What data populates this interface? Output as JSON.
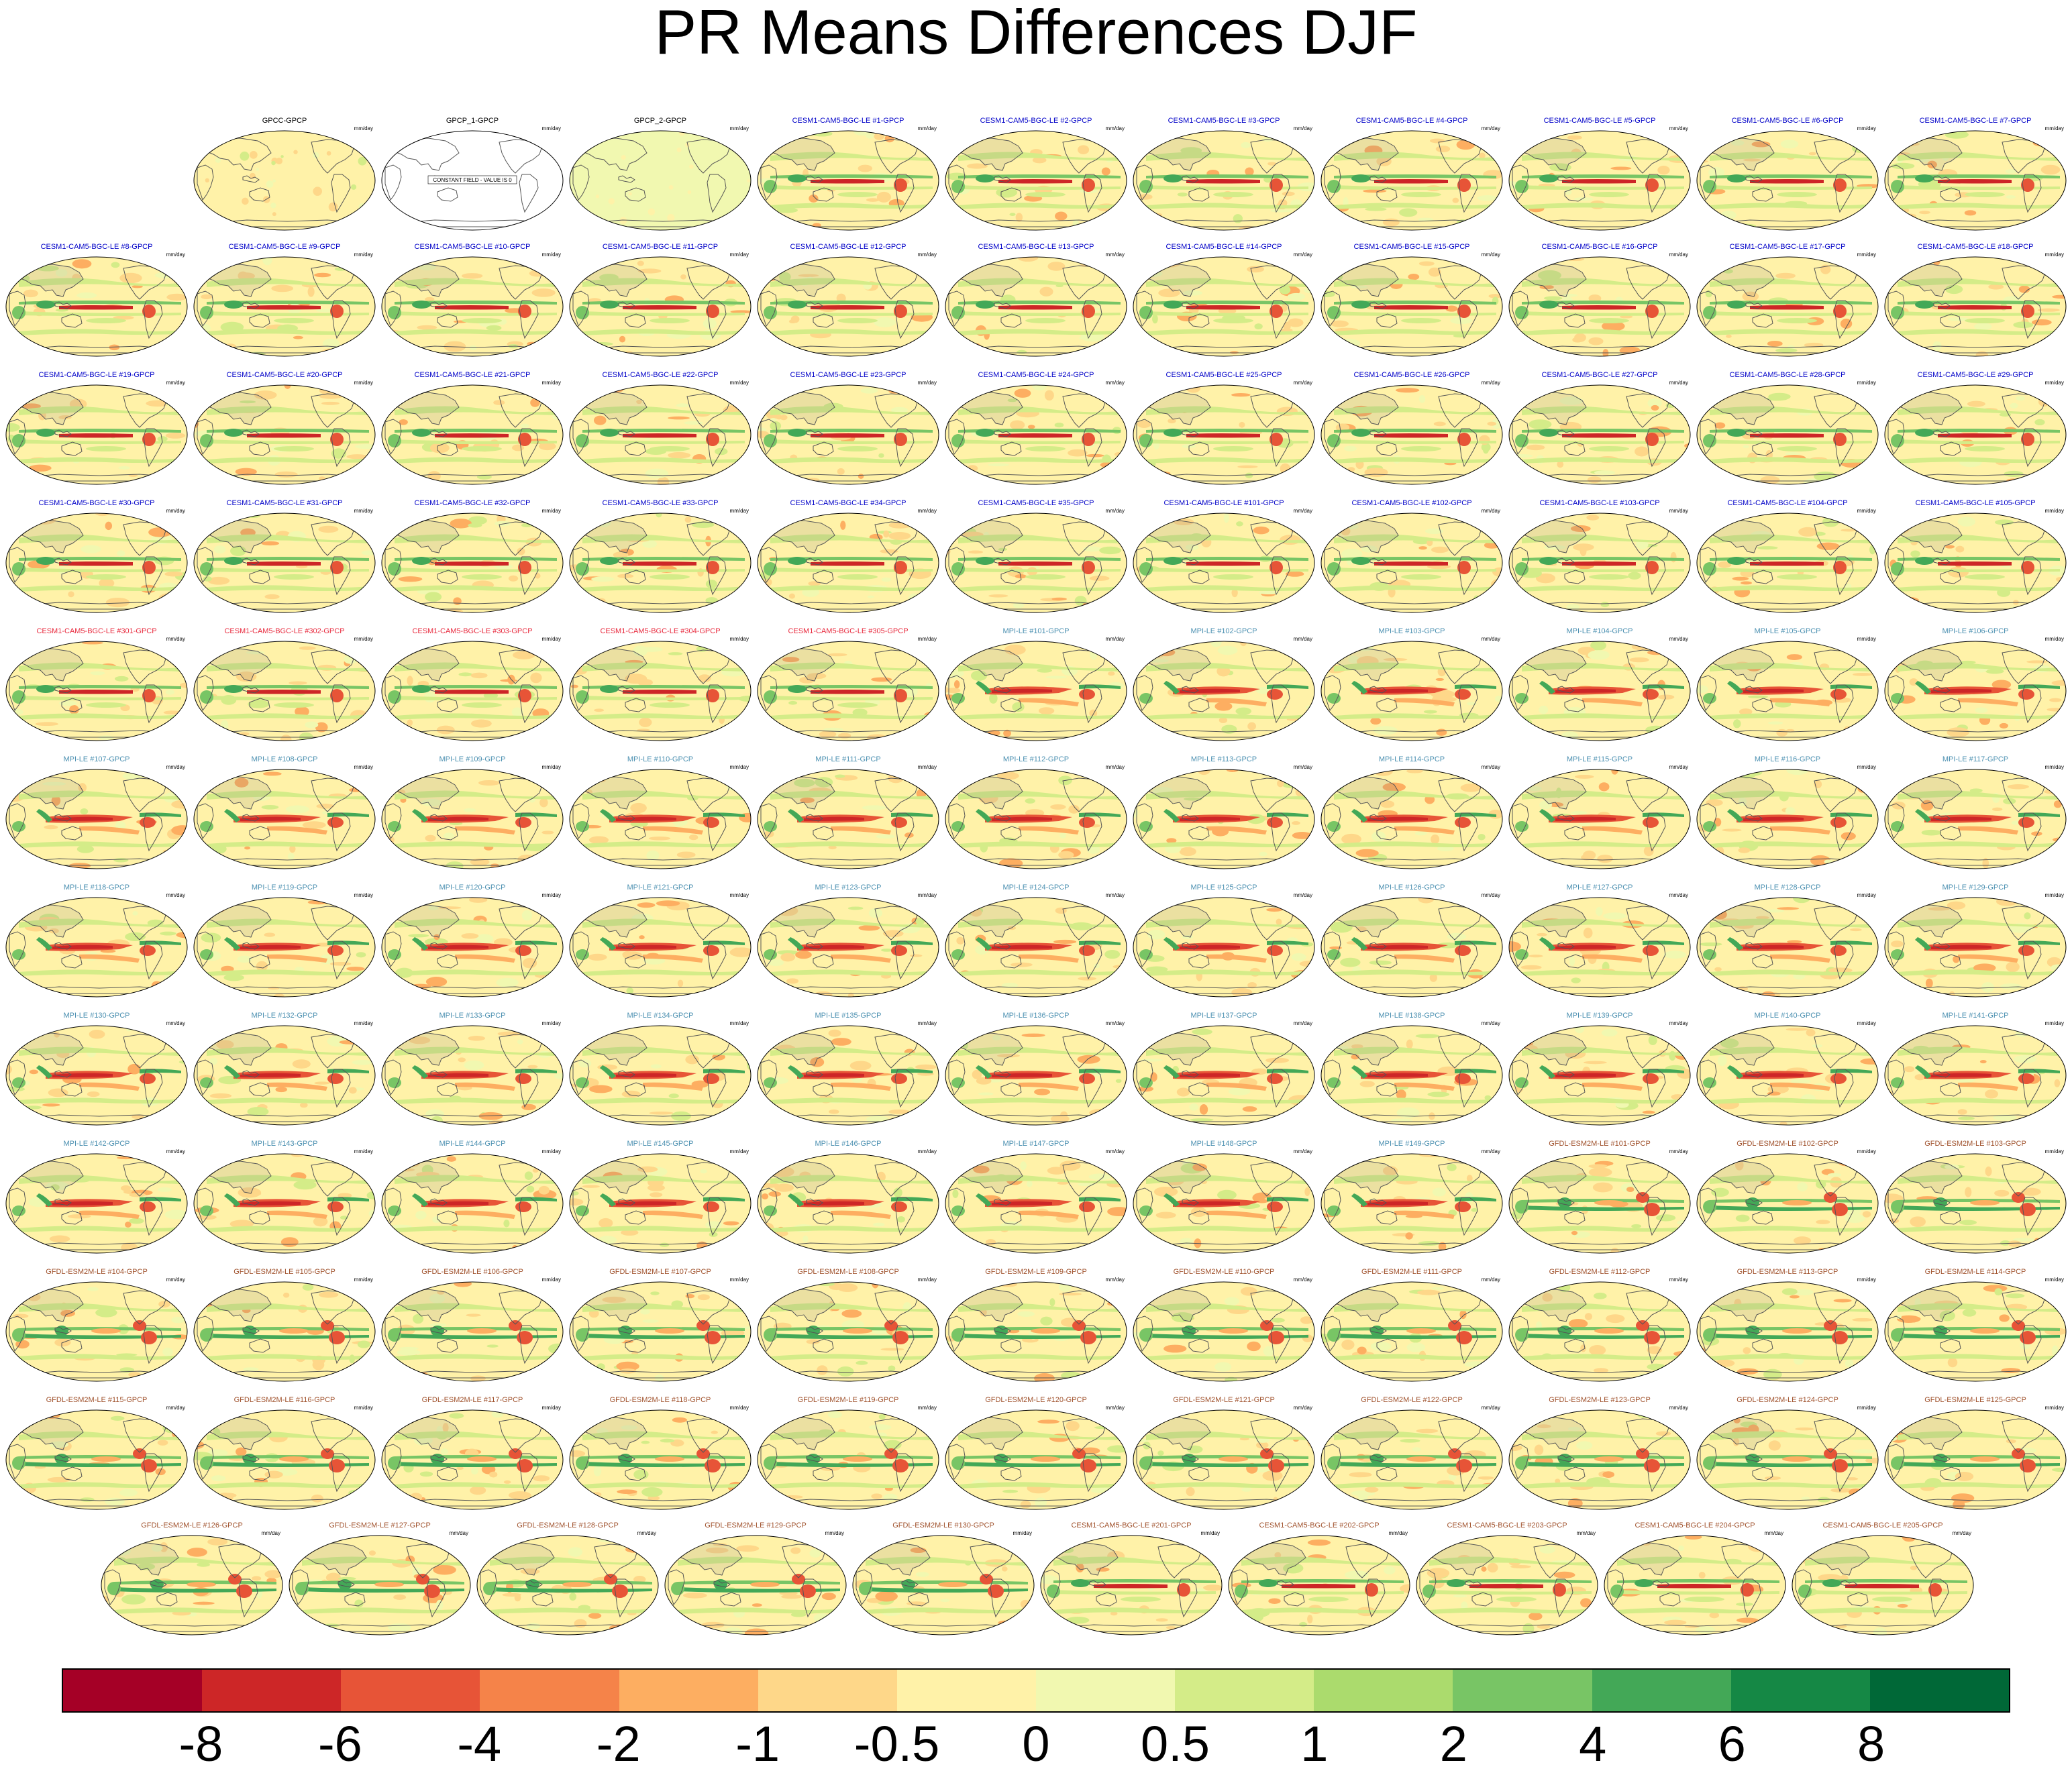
{
  "chart_data": {
    "type": "heatmap",
    "title": "PR Means Differences DJF",
    "units": "mm/day",
    "colorbar": {
      "labels": [
        "-8",
        "-6",
        "-4",
        "-2",
        "-1",
        "-0.5",
        "0",
        "0.5",
        "1",
        "2",
        "4",
        "6",
        "8"
      ],
      "colors": [
        "#a50026",
        "#cd2627",
        "#e75437",
        "#f58349",
        "#fdae61",
        "#fed789",
        "#fff2a8",
        "#f1f8b0",
        "#d4ec88",
        "#abdb6d",
        "#78c565",
        "#43a857",
        "#158845",
        "#006837"
      ]
    },
    "panels": [
      {
        "title": "GPCC-GPCP",
        "color": "#000000",
        "kind": "obs"
      },
      {
        "title": "GPCP_1-GPCP",
        "color": "#000000",
        "kind": "constant",
        "note": "CONSTANT FIELD - VALUE IS 0"
      },
      {
        "title": "GPCP_2-GPCP",
        "color": "#000000",
        "kind": "near-zero"
      },
      {
        "title": "CESM1-CAM5-BGC-LE #1-GPCP",
        "color": "#0000c8",
        "kind": "cesm"
      },
      {
        "title": "CESM1-CAM5-BGC-LE #2-GPCP",
        "color": "#0000c8",
        "kind": "cesm"
      },
      {
        "title": "CESM1-CAM5-BGC-LE #3-GPCP",
        "color": "#0000c8",
        "kind": "cesm"
      },
      {
        "title": "CESM1-CAM5-BGC-LE #4-GPCP",
        "color": "#0000c8",
        "kind": "cesm"
      },
      {
        "title": "CESM1-CAM5-BGC-LE #5-GPCP",
        "color": "#0000c8",
        "kind": "cesm"
      },
      {
        "title": "CESM1-CAM5-BGC-LE #6-GPCP",
        "color": "#0000c8",
        "kind": "cesm"
      },
      {
        "title": "CESM1-CAM5-BGC-LE #7-GPCP",
        "color": "#0000c8",
        "kind": "cesm"
      },
      {
        "title": "CESM1-CAM5-BGC-LE #8-GPCP",
        "color": "#0000c8",
        "kind": "cesm"
      },
      {
        "title": "CESM1-CAM5-BGC-LE #9-GPCP",
        "color": "#0000c8",
        "kind": "cesm"
      },
      {
        "title": "CESM1-CAM5-BGC-LE #10-GPCP",
        "color": "#0000c8",
        "kind": "cesm"
      },
      {
        "title": "CESM1-CAM5-BGC-LE #11-GPCP",
        "color": "#0000c8",
        "kind": "cesm"
      },
      {
        "title": "CESM1-CAM5-BGC-LE #12-GPCP",
        "color": "#0000c8",
        "kind": "cesm"
      },
      {
        "title": "CESM1-CAM5-BGC-LE #13-GPCP",
        "color": "#0000c8",
        "kind": "cesm"
      },
      {
        "title": "CESM1-CAM5-BGC-LE #14-GPCP",
        "color": "#0000c8",
        "kind": "cesm"
      },
      {
        "title": "CESM1-CAM5-BGC-LE #15-GPCP",
        "color": "#0000c8",
        "kind": "cesm"
      },
      {
        "title": "CESM1-CAM5-BGC-LE #16-GPCP",
        "color": "#0000c8",
        "kind": "cesm"
      },
      {
        "title": "CESM1-CAM5-BGC-LE #17-GPCP",
        "color": "#0000c8",
        "kind": "cesm"
      },
      {
        "title": "CESM1-CAM5-BGC-LE #18-GPCP",
        "color": "#0000c8",
        "kind": "cesm"
      },
      {
        "title": "CESM1-CAM5-BGC-LE #19-GPCP",
        "color": "#0000c8",
        "kind": "cesm"
      },
      {
        "title": "CESM1-CAM5-BGC-LE #20-GPCP",
        "color": "#0000c8",
        "kind": "cesm"
      },
      {
        "title": "CESM1-CAM5-BGC-LE #21-GPCP",
        "color": "#0000c8",
        "kind": "cesm"
      },
      {
        "title": "CESM1-CAM5-BGC-LE #22-GPCP",
        "color": "#0000c8",
        "kind": "cesm"
      },
      {
        "title": "CESM1-CAM5-BGC-LE #23-GPCP",
        "color": "#0000c8",
        "kind": "cesm"
      },
      {
        "title": "CESM1-CAM5-BGC-LE #24-GPCP",
        "color": "#0000c8",
        "kind": "cesm"
      },
      {
        "title": "CESM1-CAM5-BGC-LE #25-GPCP",
        "color": "#0000c8",
        "kind": "cesm"
      },
      {
        "title": "CESM1-CAM5-BGC-LE #26-GPCP",
        "color": "#0000c8",
        "kind": "cesm"
      },
      {
        "title": "CESM1-CAM5-BGC-LE #27-GPCP",
        "color": "#0000c8",
        "kind": "cesm"
      },
      {
        "title": "CESM1-CAM5-BGC-LE #28-GPCP",
        "color": "#0000c8",
        "kind": "cesm"
      },
      {
        "title": "CESM1-CAM5-BGC-LE #29-GPCP",
        "color": "#0000c8",
        "kind": "cesm"
      },
      {
        "title": "CESM1-CAM5-BGC-LE #30-GPCP",
        "color": "#0000c8",
        "kind": "cesm"
      },
      {
        "title": "CESM1-CAM5-BGC-LE #31-GPCP",
        "color": "#0000c8",
        "kind": "cesm"
      },
      {
        "title": "CESM1-CAM5-BGC-LE #32-GPCP",
        "color": "#0000c8",
        "kind": "cesm"
      },
      {
        "title": "CESM1-CAM5-BGC-LE #33-GPCP",
        "color": "#0000c8",
        "kind": "cesm"
      },
      {
        "title": "CESM1-CAM5-BGC-LE #34-GPCP",
        "color": "#0000c8",
        "kind": "cesm"
      },
      {
        "title": "CESM1-CAM5-BGC-LE #35-GPCP",
        "color": "#0000c8",
        "kind": "cesm"
      },
      {
        "title": "CESM1-CAM5-BGC-LE #101-GPCP",
        "color": "#0000c8",
        "kind": "cesm"
      },
      {
        "title": "CESM1-CAM5-BGC-LE #102-GPCP",
        "color": "#0000c8",
        "kind": "cesm"
      },
      {
        "title": "CESM1-CAM5-BGC-LE #103-GPCP",
        "color": "#0000c8",
        "kind": "cesm"
      },
      {
        "title": "CESM1-CAM5-BGC-LE #104-GPCP",
        "color": "#0000c8",
        "kind": "cesm"
      },
      {
        "title": "CESM1-CAM5-BGC-LE #105-GPCP",
        "color": "#0000c8",
        "kind": "cesm"
      },
      {
        "title": "CESM1-CAM5-BGC-LE #301-GPCP",
        "color": "#e8283c",
        "kind": "cesm"
      },
      {
        "title": "CESM1-CAM5-BGC-LE #302-GPCP",
        "color": "#e8283c",
        "kind": "cesm"
      },
      {
        "title": "CESM1-CAM5-BGC-LE #303-GPCP",
        "color": "#e8283c",
        "kind": "cesm"
      },
      {
        "title": "CESM1-CAM5-BGC-LE #304-GPCP",
        "color": "#e8283c",
        "kind": "cesm"
      },
      {
        "title": "CESM1-CAM5-BGC-LE #305-GPCP",
        "color": "#e8283c",
        "kind": "cesm"
      },
      {
        "title": "MPI-LE #101-GPCP",
        "color": "#4a8fb0",
        "kind": "mpi"
      },
      {
        "title": "MPI-LE #102-GPCP",
        "color": "#4a8fb0",
        "kind": "mpi"
      },
      {
        "title": "MPI-LE #103-GPCP",
        "color": "#4a8fb0",
        "kind": "mpi"
      },
      {
        "title": "MPI-LE #104-GPCP",
        "color": "#4a8fb0",
        "kind": "mpi"
      },
      {
        "title": "MPI-LE #105-GPCP",
        "color": "#4a8fb0",
        "kind": "mpi"
      },
      {
        "title": "MPI-LE #106-GPCP",
        "color": "#4a8fb0",
        "kind": "mpi"
      },
      {
        "title": "MPI-LE #107-GPCP",
        "color": "#4a8fb0",
        "kind": "mpi"
      },
      {
        "title": "MPI-LE #108-GPCP",
        "color": "#4a8fb0",
        "kind": "mpi"
      },
      {
        "title": "MPI-LE #109-GPCP",
        "color": "#4a8fb0",
        "kind": "mpi"
      },
      {
        "title": "MPI-LE #110-GPCP",
        "color": "#4a8fb0",
        "kind": "mpi"
      },
      {
        "title": "MPI-LE #111-GPCP",
        "color": "#4a8fb0",
        "kind": "mpi"
      },
      {
        "title": "MPI-LE #112-GPCP",
        "color": "#4a8fb0",
        "kind": "mpi"
      },
      {
        "title": "MPI-LE #113-GPCP",
        "color": "#4a8fb0",
        "kind": "mpi"
      },
      {
        "title": "MPI-LE #114-GPCP",
        "color": "#4a8fb0",
        "kind": "mpi"
      },
      {
        "title": "MPI-LE #115-GPCP",
        "color": "#4a8fb0",
        "kind": "mpi"
      },
      {
        "title": "MPI-LE #116-GPCP",
        "color": "#4a8fb0",
        "kind": "mpi"
      },
      {
        "title": "MPI-LE #117-GPCP",
        "color": "#4a8fb0",
        "kind": "mpi"
      },
      {
        "title": "MPI-LE #118-GPCP",
        "color": "#4a8fb0",
        "kind": "mpi"
      },
      {
        "title": "MPI-LE #119-GPCP",
        "color": "#4a8fb0",
        "kind": "mpi"
      },
      {
        "title": "MPI-LE #120-GPCP",
        "color": "#4a8fb0",
        "kind": "mpi"
      },
      {
        "title": "MPI-LE #121-GPCP",
        "color": "#4a8fb0",
        "kind": "mpi"
      },
      {
        "title": "MPI-LE #123-GPCP",
        "color": "#4a8fb0",
        "kind": "mpi"
      },
      {
        "title": "MPI-LE #124-GPCP",
        "color": "#4a8fb0",
        "kind": "mpi"
      },
      {
        "title": "MPI-LE #125-GPCP",
        "color": "#4a8fb0",
        "kind": "mpi"
      },
      {
        "title": "MPI-LE #126-GPCP",
        "color": "#4a8fb0",
        "kind": "mpi"
      },
      {
        "title": "MPI-LE #127-GPCP",
        "color": "#4a8fb0",
        "kind": "mpi"
      },
      {
        "title": "MPI-LE #128-GPCP",
        "color": "#4a8fb0",
        "kind": "mpi"
      },
      {
        "title": "MPI-LE #129-GPCP",
        "color": "#4a8fb0",
        "kind": "mpi"
      },
      {
        "title": "MPI-LE #130-GPCP",
        "color": "#4a8fb0",
        "kind": "mpi"
      },
      {
        "title": "MPI-LE #132-GPCP",
        "color": "#4a8fb0",
        "kind": "mpi"
      },
      {
        "title": "MPI-LE #133-GPCP",
        "color": "#4a8fb0",
        "kind": "mpi"
      },
      {
        "title": "MPI-LE #134-GPCP",
        "color": "#4a8fb0",
        "kind": "mpi"
      },
      {
        "title": "MPI-LE #135-GPCP",
        "color": "#4a8fb0",
        "kind": "mpi"
      },
      {
        "title": "MPI-LE #136-GPCP",
        "color": "#4a8fb0",
        "kind": "mpi"
      },
      {
        "title": "MPI-LE #137-GPCP",
        "color": "#4a8fb0",
        "kind": "mpi"
      },
      {
        "title": "MPI-LE #138-GPCP",
        "color": "#4a8fb0",
        "kind": "mpi"
      },
      {
        "title": "MPI-LE #139-GPCP",
        "color": "#4a8fb0",
        "kind": "mpi"
      },
      {
        "title": "MPI-LE #140-GPCP",
        "color": "#4a8fb0",
        "kind": "mpi"
      },
      {
        "title": "MPI-LE #141-GPCP",
        "color": "#4a8fb0",
        "kind": "mpi"
      },
      {
        "title": "MPI-LE #142-GPCP",
        "color": "#4a8fb0",
        "kind": "mpi"
      },
      {
        "title": "MPI-LE #143-GPCP",
        "color": "#4a8fb0",
        "kind": "mpi"
      },
      {
        "title": "MPI-LE #144-GPCP",
        "color": "#4a8fb0",
        "kind": "mpi"
      },
      {
        "title": "MPI-LE #145-GPCP",
        "color": "#4a8fb0",
        "kind": "mpi"
      },
      {
        "title": "MPI-LE #146-GPCP",
        "color": "#4a8fb0",
        "kind": "mpi"
      },
      {
        "title": "MPI-LE #147-GPCP",
        "color": "#4a8fb0",
        "kind": "mpi"
      },
      {
        "title": "MPI-LE #148-GPCP",
        "color": "#4a8fb0",
        "kind": "mpi"
      },
      {
        "title": "MPI-LE #149-GPCP",
        "color": "#4a8fb0",
        "kind": "mpi"
      },
      {
        "title": "GFDL-ESM2M-LE #101-GPCP",
        "color": "#a0522d",
        "kind": "gfdl"
      },
      {
        "title": "GFDL-ESM2M-LE #102-GPCP",
        "color": "#a0522d",
        "kind": "gfdl"
      },
      {
        "title": "GFDL-ESM2M-LE #103-GPCP",
        "color": "#a0522d",
        "kind": "gfdl"
      },
      {
        "title": "GFDL-ESM2M-LE #104-GPCP",
        "color": "#a0522d",
        "kind": "gfdl"
      },
      {
        "title": "GFDL-ESM2M-LE #105-GPCP",
        "color": "#a0522d",
        "kind": "gfdl"
      },
      {
        "title": "GFDL-ESM2M-LE #106-GPCP",
        "color": "#a0522d",
        "kind": "gfdl"
      },
      {
        "title": "GFDL-ESM2M-LE #107-GPCP",
        "color": "#a0522d",
        "kind": "gfdl"
      },
      {
        "title": "GFDL-ESM2M-LE #108-GPCP",
        "color": "#a0522d",
        "kind": "gfdl"
      },
      {
        "title": "GFDL-ESM2M-LE #109-GPCP",
        "color": "#a0522d",
        "kind": "gfdl"
      },
      {
        "title": "GFDL-ESM2M-LE #110-GPCP",
        "color": "#a0522d",
        "kind": "gfdl"
      },
      {
        "title": "GFDL-ESM2M-LE #111-GPCP",
        "color": "#a0522d",
        "kind": "gfdl"
      },
      {
        "title": "GFDL-ESM2M-LE #112-GPCP",
        "color": "#a0522d",
        "kind": "gfdl"
      },
      {
        "title": "GFDL-ESM2M-LE #113-GPCP",
        "color": "#a0522d",
        "kind": "gfdl"
      },
      {
        "title": "GFDL-ESM2M-LE #114-GPCP",
        "color": "#a0522d",
        "kind": "gfdl"
      },
      {
        "title": "GFDL-ESM2M-LE #115-GPCP",
        "color": "#a0522d",
        "kind": "gfdl"
      },
      {
        "title": "GFDL-ESM2M-LE #116-GPCP",
        "color": "#a0522d",
        "kind": "gfdl"
      },
      {
        "title": "GFDL-ESM2M-LE #117-GPCP",
        "color": "#a0522d",
        "kind": "gfdl"
      },
      {
        "title": "GFDL-ESM2M-LE #118-GPCP",
        "color": "#a0522d",
        "kind": "gfdl"
      },
      {
        "title": "GFDL-ESM2M-LE #119-GPCP",
        "color": "#a0522d",
        "kind": "gfdl"
      },
      {
        "title": "GFDL-ESM2M-LE #120-GPCP",
        "color": "#a0522d",
        "kind": "gfdl"
      },
      {
        "title": "GFDL-ESM2M-LE #121-GPCP",
        "color": "#a0522d",
        "kind": "gfdl"
      },
      {
        "title": "GFDL-ESM2M-LE #122-GPCP",
        "color": "#a0522d",
        "kind": "gfdl"
      },
      {
        "title": "GFDL-ESM2M-LE #123-GPCP",
        "color": "#a0522d",
        "kind": "gfdl"
      },
      {
        "title": "GFDL-ESM2M-LE #124-GPCP",
        "color": "#a0522d",
        "kind": "gfdl"
      },
      {
        "title": "GFDL-ESM2M-LE #125-GPCP",
        "color": "#a0522d",
        "kind": "gfdl"
      },
      {
        "title": "GFDL-ESM2M-LE #126-GPCP",
        "color": "#a0522d",
        "kind": "gfdl"
      },
      {
        "title": "GFDL-ESM2M-LE #127-GPCP",
        "color": "#a0522d",
        "kind": "gfdl"
      },
      {
        "title": "GFDL-ESM2M-LE #128-GPCP",
        "color": "#a0522d",
        "kind": "gfdl"
      },
      {
        "title": "GFDL-ESM2M-LE #129-GPCP",
        "color": "#a0522d",
        "kind": "gfdl"
      },
      {
        "title": "GFDL-ESM2M-LE #130-GPCP",
        "color": "#a0522d",
        "kind": "gfdl"
      },
      {
        "title": "CESM1-CAM5-BGC-LE #201-GPCP",
        "color": "#a0522d",
        "kind": "cesm"
      },
      {
        "title": "CESM1-CAM5-BGC-LE #202-GPCP",
        "color": "#a0522d",
        "kind": "cesm"
      },
      {
        "title": "CESM1-CAM5-BGC-LE #203-GPCP",
        "color": "#a0522d",
        "kind": "cesm"
      },
      {
        "title": "CESM1-CAM5-BGC-LE #204-GPCP",
        "color": "#a0522d",
        "kind": "cesm"
      },
      {
        "title": "CESM1-CAM5-BGC-LE #205-GPCP",
        "color": "#a0522d",
        "kind": "cesm"
      }
    ]
  }
}
